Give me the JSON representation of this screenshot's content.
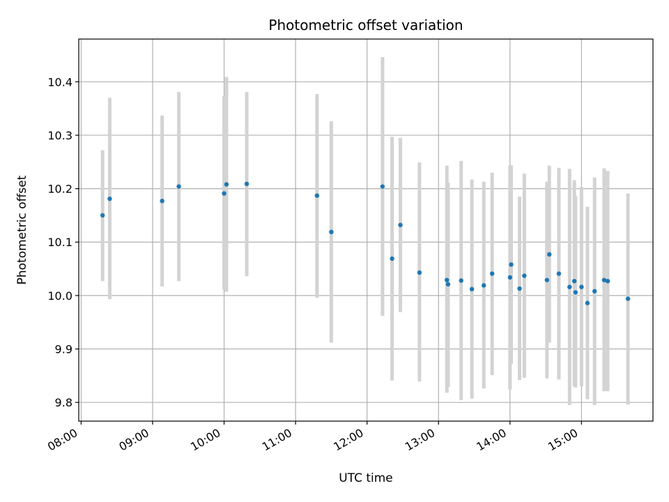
{
  "chart_data": {
    "type": "scatter",
    "title": "Photometric offset variation",
    "xlabel": "UTC time",
    "ylabel": "Photometric offset",
    "xlim": [
      "07:58",
      "16:00"
    ],
    "ylim": [
      9.765,
      10.48
    ],
    "x_ticks": [
      "08:00",
      "09:00",
      "10:00",
      "11:00",
      "12:00",
      "13:00",
      "14:00",
      "15:00"
    ],
    "y_ticks": [
      "9.8",
      "9.9",
      "10.0",
      "10.1",
      "10.2",
      "10.3",
      "10.4"
    ],
    "grid": true,
    "colors": {
      "points": "#1f77b4",
      "errorbars": "#d3d3d3",
      "grid": "#b0b0b0"
    },
    "points": [
      {
        "x": "08:18",
        "y": 10.15,
        "lo": 10.027,
        "hi": 10.272
      },
      {
        "x": "08:24",
        "y": 10.181,
        "lo": 9.993,
        "hi": 10.37
      },
      {
        "x": "09:08",
        "y": 10.177,
        "lo": 10.017,
        "hi": 10.337
      },
      {
        "x": "09:22",
        "y": 10.204,
        "lo": 10.027,
        "hi": 10.381
      },
      {
        "x": "10:00",
        "y": 10.191,
        "lo": 10.011,
        "hi": 10.373
      },
      {
        "x": "10:02",
        "y": 10.208,
        "lo": 10.007,
        "hi": 10.409
      },
      {
        "x": "10:19",
        "y": 10.209,
        "lo": 10.036,
        "hi": 10.381
      },
      {
        "x": "11:18",
        "y": 10.187,
        "lo": 9.996,
        "hi": 10.377
      },
      {
        "x": "11:30",
        "y": 10.119,
        "lo": 9.912,
        "hi": 10.326
      },
      {
        "x": "12:13",
        "y": 10.204,
        "lo": 9.962,
        "hi": 10.446
      },
      {
        "x": "12:21",
        "y": 10.069,
        "lo": 9.841,
        "hi": 10.297
      },
      {
        "x": "12:28",
        "y": 10.132,
        "lo": 9.969,
        "hi": 10.295
      },
      {
        "x": "12:44",
        "y": 10.043,
        "lo": 9.839,
        "hi": 10.249
      },
      {
        "x": "13:07",
        "y": 10.029,
        "lo": 9.818,
        "hi": 10.243
      },
      {
        "x": "13:08",
        "y": 10.021,
        "lo": 9.829,
        "hi": 10.211
      },
      {
        "x": "13:19",
        "y": 10.028,
        "lo": 9.804,
        "hi": 10.252
      },
      {
        "x": "13:28",
        "y": 10.012,
        "lo": 9.807,
        "hi": 10.217
      },
      {
        "x": "13:38",
        "y": 10.019,
        "lo": 9.826,
        "hi": 10.213
      },
      {
        "x": "13:45",
        "y": 10.041,
        "lo": 9.851,
        "hi": 10.23
      },
      {
        "x": "14:00",
        "y": 10.034,
        "lo": 9.824,
        "hi": 10.244
      },
      {
        "x": "14:01",
        "y": 10.058,
        "lo": 9.872,
        "hi": 10.244
      },
      {
        "x": "14:08",
        "y": 10.013,
        "lo": 9.842,
        "hi": 10.185
      },
      {
        "x": "14:12",
        "y": 10.037,
        "lo": 9.846,
        "hi": 10.228
      },
      {
        "x": "14:31",
        "y": 10.029,
        "lo": 9.845,
        "hi": 10.213
      },
      {
        "x": "14:33",
        "y": 10.077,
        "lo": 9.912,
        "hi": 10.243
      },
      {
        "x": "14:41",
        "y": 10.041,
        "lo": 9.843,
        "hi": 10.239
      },
      {
        "x": "14:50",
        "y": 10.016,
        "lo": 9.795,
        "hi": 10.237
      },
      {
        "x": "14:54",
        "y": 10.027,
        "lo": 9.83,
        "hi": 10.216
      },
      {
        "x": "14:55",
        "y": 10.006,
        "lo": 9.828,
        "hi": 10.186
      },
      {
        "x": "15:00",
        "y": 10.016,
        "lo": 9.83,
        "hi": 10.203
      },
      {
        "x": "15:05",
        "y": 9.986,
        "lo": 9.806,
        "hi": 10.166
      },
      {
        "x": "15:11",
        "y": 10.008,
        "lo": 9.795,
        "hi": 10.221
      },
      {
        "x": "15:19",
        "y": 10.029,
        "lo": 9.821,
        "hi": 10.238
      },
      {
        "x": "15:22",
        "y": 10.027,
        "lo": 9.821,
        "hi": 10.233
      },
      {
        "x": "15:39",
        "y": 9.994,
        "lo": 9.796,
        "hi": 10.191
      }
    ]
  }
}
